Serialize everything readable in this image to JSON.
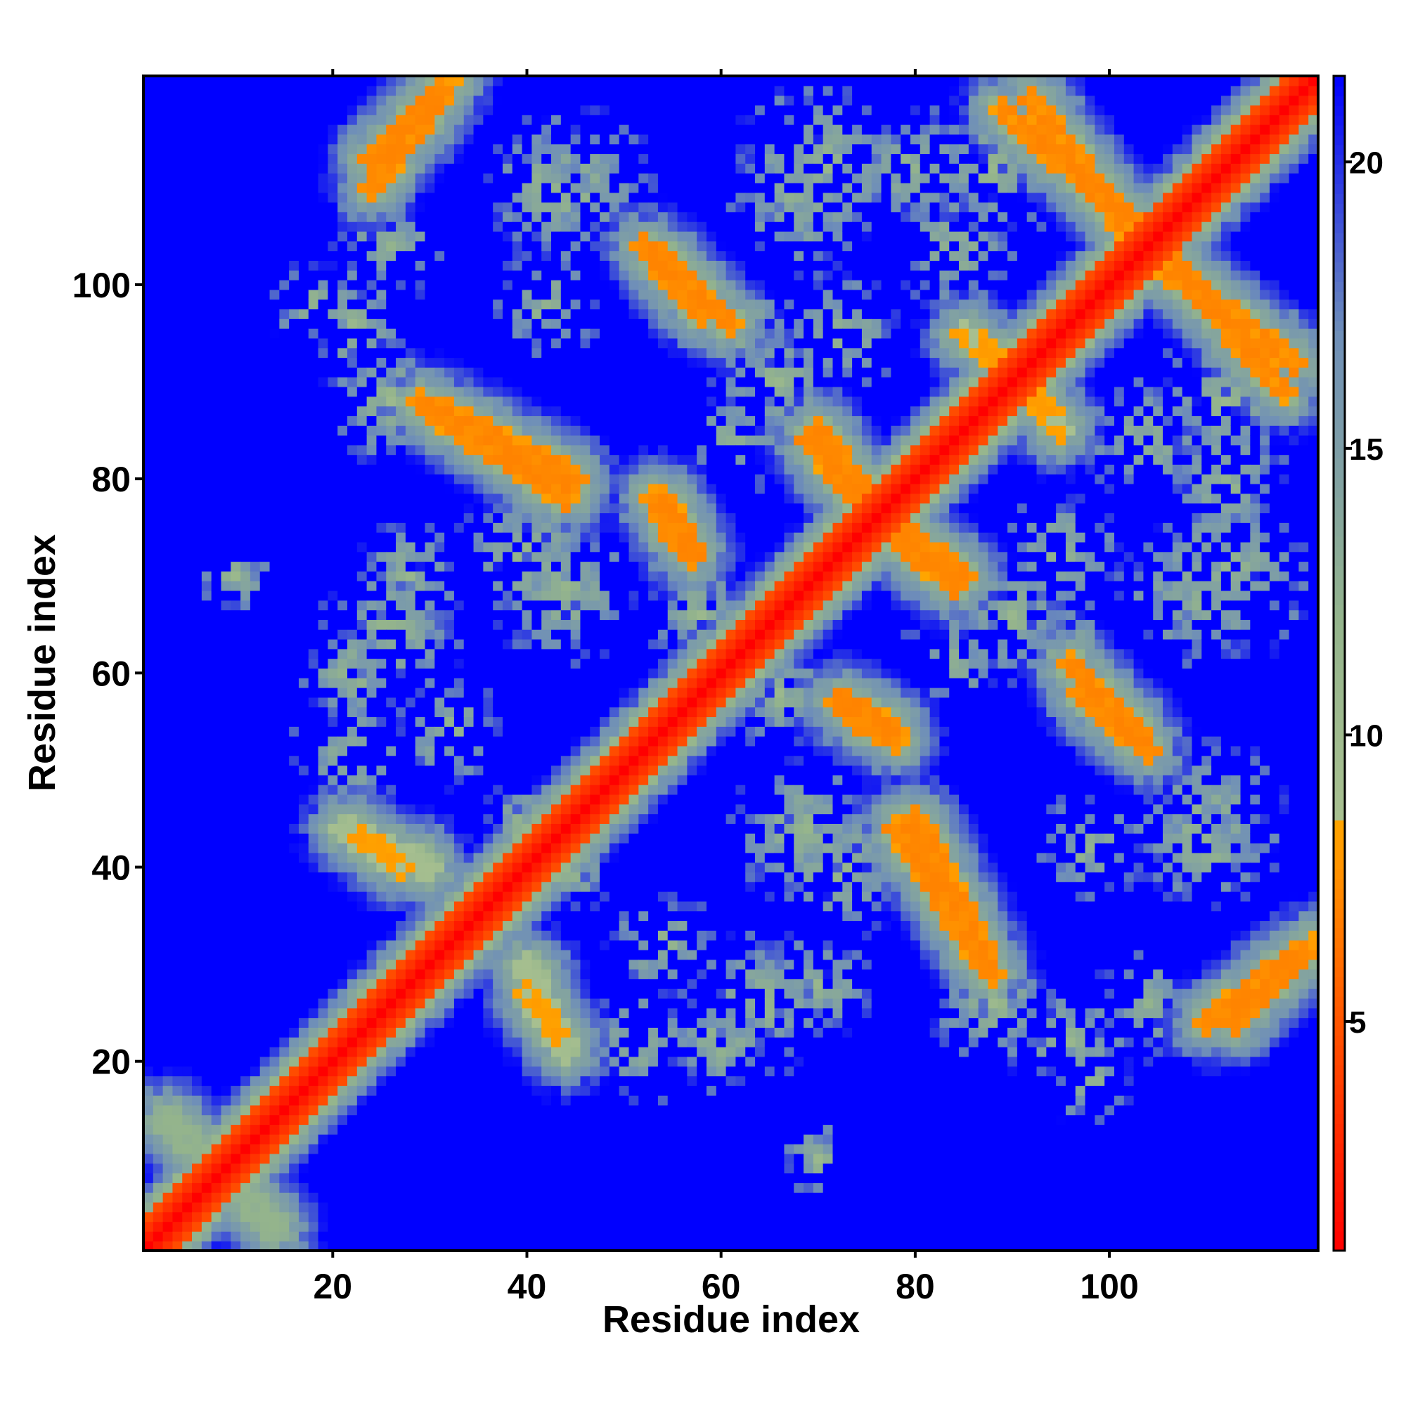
{
  "chart_data": {
    "type": "heatmap",
    "title": "",
    "xlabel": "Residue index",
    "ylabel": "Residue index",
    "xlim": [
      1,
      121
    ],
    "ylim": [
      1,
      121
    ],
    "n_residues": 121,
    "x_ticks": [
      20,
      40,
      60,
      80,
      100
    ],
    "y_ticks": [
      20,
      40,
      60,
      80,
      100
    ],
    "colorbar": {
      "range": [
        1,
        21.5
      ],
      "ticks": [
        5,
        10,
        15,
        20
      ],
      "stops": [
        {
          "value": 1,
          "color": "#ff0000"
        },
        {
          "value": 5,
          "color": "#ff5500"
        },
        {
          "value": 8.5,
          "color": "#ffa500"
        },
        {
          "value": 8.6,
          "color": "#a8c090"
        },
        {
          "value": 12,
          "color": "#94b48c"
        },
        {
          "value": 17,
          "color": "#6f8fb8"
        },
        {
          "value": 21.5,
          "color": "#0000ff"
        }
      ]
    },
    "background_value": 21.5,
    "diagonal_band": {
      "distance": 1,
      "halfwidth": 3
    },
    "contact_bands": [
      {
        "x": [
          3,
          14
        ],
        "y": [
          14,
          3
        ],
        "distance": 12
      },
      {
        "x": [
          24,
          31
        ],
        "y": [
          113,
          120
        ],
        "distance": 7
      },
      {
        "x": [
          29,
          44
        ],
        "y": [
          88,
          78
        ],
        "distance": 7
      },
      {
        "x": [
          52,
          58
        ],
        "y": [
          104,
          97
        ],
        "distance": 7
      },
      {
        "x": [
          53,
          57
        ],
        "y": [
          78,
          72
        ],
        "distance": 7
      },
      {
        "x": [
          69,
          74
        ],
        "y": [
          84,
          78
        ],
        "distance": 7
      },
      {
        "x": [
          77,
          85
        ],
        "y": [
          76,
          70
        ],
        "distance": 7
      },
      {
        "x": [
          73,
          78
        ],
        "y": [
          57,
          54
        ],
        "distance": 7
      },
      {
        "x": [
          80,
          87
        ],
        "y": [
          45,
          31
        ],
        "distance": 7
      },
      {
        "x": [
          96,
          103
        ],
        "y": [
          61,
          54
        ],
        "distance": 7
      },
      {
        "x": [
          89,
          103
        ],
        "y": [
          118,
          106
        ],
        "distance": 7
      },
      {
        "x": [
          104,
          119
        ],
        "y": [
          103,
          92
        ],
        "distance": 7
      },
      {
        "x": [
          110,
          121
        ],
        "y": [
          24,
          32
        ],
        "distance": 7
      },
      {
        "x": [
          21,
          30
        ],
        "y": [
          44,
          40
        ],
        "distance": 9
      },
      {
        "x": [
          40,
          43
        ],
        "y": [
          27,
          23
        ],
        "distance": 8
      },
      {
        "x": [
          91,
          95
        ],
        "y": [
          90,
          85
        ],
        "distance": 8
      }
    ],
    "contact_blobs": [
      {
        "center": [
          22,
          96
        ],
        "radius": 7
      },
      {
        "center": [
          28,
          70
        ],
        "radius": 6
      },
      {
        "center": [
          22,
          60
        ],
        "radius": 6
      },
      {
        "center": [
          45,
          110
        ],
        "radius": 9
      },
      {
        "center": [
          70,
          112
        ],
        "radius": 10
      },
      {
        "center": [
          88,
          112
        ],
        "radius": 8
      },
      {
        "center": [
          62,
          96
        ],
        "radius": 6
      },
      {
        "center": [
          72,
          95
        ],
        "radius": 7
      },
      {
        "center": [
          44,
          68
        ],
        "radius": 8
      },
      {
        "center": [
          62,
          84
        ],
        "radius": 6
      },
      {
        "center": [
          66,
          58
        ],
        "radius": 6
      },
      {
        "center": [
          90,
          66
        ],
        "radius": 7
      },
      {
        "center": [
          108,
          68
        ],
        "radius": 8
      },
      {
        "center": [
          112,
          80
        ],
        "radius": 7
      },
      {
        "center": [
          104,
          84
        ],
        "radius": 7
      },
      {
        "center": [
          72,
          40
        ],
        "radius": 8
      },
      {
        "center": [
          64,
          26
        ],
        "radius": 8
      },
      {
        "center": [
          52,
          22
        ],
        "radius": 7
      },
      {
        "center": [
          88,
          26
        ],
        "radius": 7
      },
      {
        "center": [
          104,
          26
        ],
        "radius": 6
      },
      {
        "center": [
          110,
          42
        ],
        "radius": 7
      },
      {
        "center": [
          98,
          42
        ],
        "radius": 6
      },
      {
        "center": [
          44,
          40
        ],
        "radius": 6
      },
      {
        "center": [
          32,
          54
        ],
        "radius": 6
      },
      {
        "center": [
          10,
          70
        ],
        "radius": 4
      },
      {
        "center": [
          18,
          98
        ],
        "radius": 5
      }
    ]
  }
}
